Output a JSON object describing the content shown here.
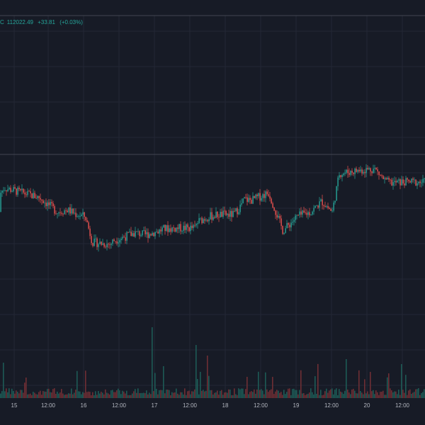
{
  "legend": {
    "symbol_tail": "C",
    "price": "112022.49",
    "change": "+33.81",
    "change_pct": "(+0.03%)"
  },
  "colors": {
    "background": "#171b26",
    "grid": "#232735",
    "up": "#26a69a",
    "down": "#ef5350",
    "crosshair": "#434651",
    "volume_up": "#1d5a55",
    "volume_down": "#6e2e34",
    "tick_text": "#b2b5be"
  },
  "chart_data": {
    "type": "candlestick",
    "x_ticks": [
      "15",
      "12:00",
      "16",
      "12:00",
      "17",
      "12:00",
      "18",
      "12:00",
      "19",
      "12:00",
      "20",
      "12:00"
    ],
    "grid": true,
    "price_path": [
      [
        0.0,
        0.6
      ],
      [
        0.5,
        0.85
      ],
      [
        1.0,
        0.8
      ],
      [
        1.5,
        0.75
      ],
      [
        2.0,
        0.6
      ],
      [
        2.3,
        0.62
      ],
      [
        2.5,
        0.58
      ],
      [
        2.8,
        0.55
      ],
      [
        3.0,
        0.28
      ],
      [
        3.5,
        0.26
      ],
      [
        3.6,
        0.3
      ],
      [
        4.0,
        0.35
      ],
      [
        4.2,
        0.38
      ],
      [
        4.5,
        0.36
      ],
      [
        4.9,
        0.4
      ],
      [
        5.0,
        0.42
      ],
      [
        5.5,
        0.43
      ],
      [
        5.9,
        0.43
      ],
      [
        6.0,
        0.5
      ],
      [
        6.3,
        0.55
      ],
      [
        6.6,
        0.57
      ],
      [
        7.0,
        0.57
      ],
      [
        7.2,
        0.66
      ],
      [
        7.3,
        0.73
      ],
      [
        7.5,
        0.72
      ],
      [
        8.0,
        0.8
      ],
      [
        8.4,
        0.4
      ],
      [
        8.8,
        0.55
      ],
      [
        9.2,
        0.6
      ],
      [
        9.5,
        0.71
      ],
      [
        9.8,
        0.6
      ],
      [
        10.0,
        1.0
      ],
      [
        10.5,
        1.03
      ],
      [
        11.0,
        1.05
      ],
      [
        11.3,
        0.92
      ],
      [
        11.5,
        0.9
      ],
      [
        11.8,
        0.91
      ]
    ],
    "price_map": {
      "y_at_0": 380,
      "y_at_1": 245
    }
  }
}
